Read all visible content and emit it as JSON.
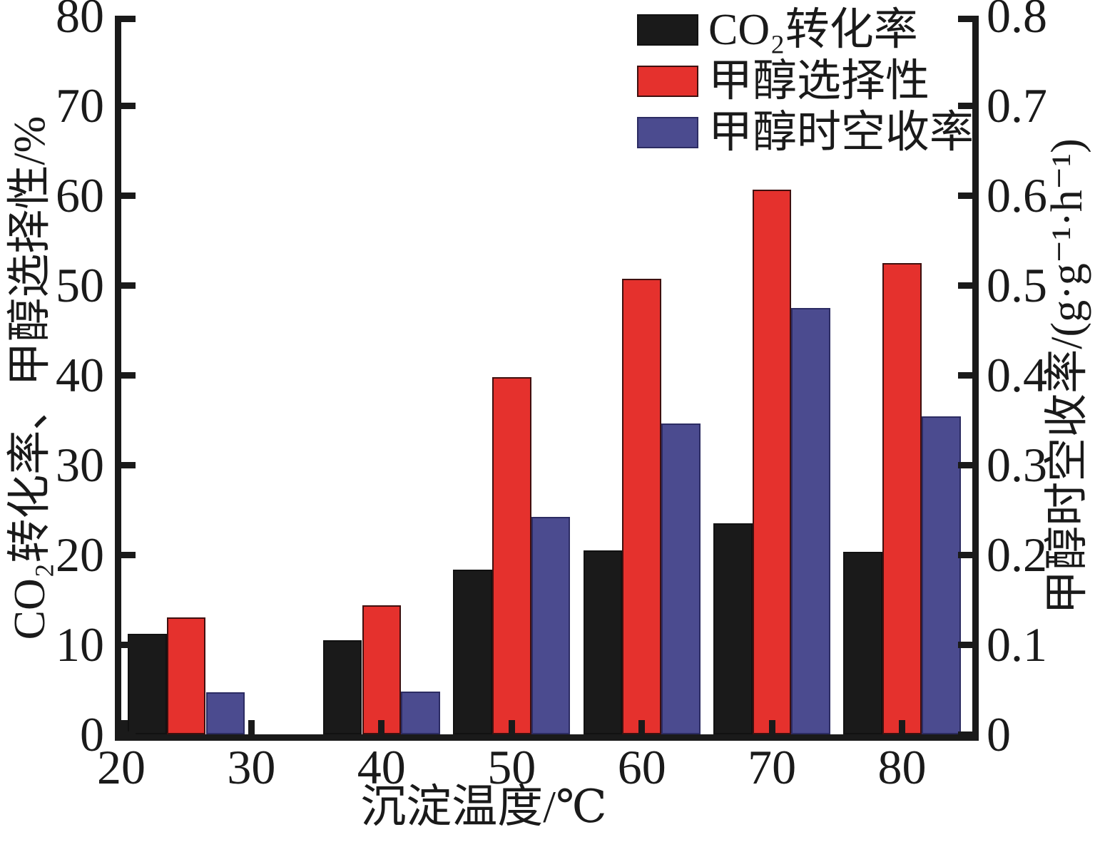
{
  "chart_data": {
    "type": "bar",
    "title": "",
    "xlabel": "沉淀温度/℃",
    "ylabel_left": "CO₂转化率、甲醇选择性/%",
    "ylabel_right": "甲醇时空收率/(g·g⁻¹·h⁻¹)",
    "x_axis": {
      "min": 20,
      "max": 85.4,
      "tick_labels": [
        "20",
        "30",
        "40",
        "50",
        "60",
        "70",
        "80"
      ]
    },
    "y_axis_left": {
      "min": 0,
      "max": 80,
      "tick_labels": [
        "0",
        "10",
        "20",
        "30",
        "40",
        "50",
        "60",
        "70",
        "80"
      ]
    },
    "y_axis_right": {
      "min": 0,
      "max": 0.8,
      "tick_labels": [
        "0",
        "0.1",
        "0.2",
        "0.3",
        "0.4",
        "0.5",
        "0.6",
        "0.7",
        "0.8"
      ]
    },
    "grid": false,
    "legend_position": "upper-center",
    "legend": [
      {
        "label": "CO₂转化率",
        "color": "#1a1a1a",
        "border": "#111111"
      },
      {
        "label": "甲醇选择性",
        "color": "#e5312d",
        "border": "#3f100f"
      },
      {
        "label": "甲醇时空收率",
        "color": "#4b4b8f",
        "border": "#2c2c63"
      }
    ],
    "categories": [
      20,
      40,
      50,
      60,
      70,
      80
    ],
    "group_centers": [
      25,
      40,
      50,
      60,
      70,
      80
    ],
    "bar_width_units": 3,
    "series": [
      {
        "key": "co2-conversion",
        "name": "CO₂转化率",
        "axis": "left",
        "color": "#1a1a1a",
        "border": "#111111",
        "values": [
          11.2,
          10.5,
          18.3,
          20.5,
          23.5,
          20.3
        ]
      },
      {
        "key": "methanol-selectivity",
        "name": "甲醇选择性",
        "axis": "left",
        "color": "#e5312d",
        "border": "#3f100f",
        "values": [
          13.0,
          14.4,
          39.8,
          50.7,
          60.6,
          52.5
        ]
      },
      {
        "key": "methanol-sty",
        "name": "甲醇时空收率",
        "axis": "right",
        "color": "#4b4b8f",
        "border": "#2c2c63",
        "values": [
          0.047,
          0.048,
          0.242,
          0.346,
          0.475,
          0.354
        ]
      }
    ],
    "colors": {
      "axis": "#1a1a1a",
      "background": "#ffffff"
    }
  }
}
